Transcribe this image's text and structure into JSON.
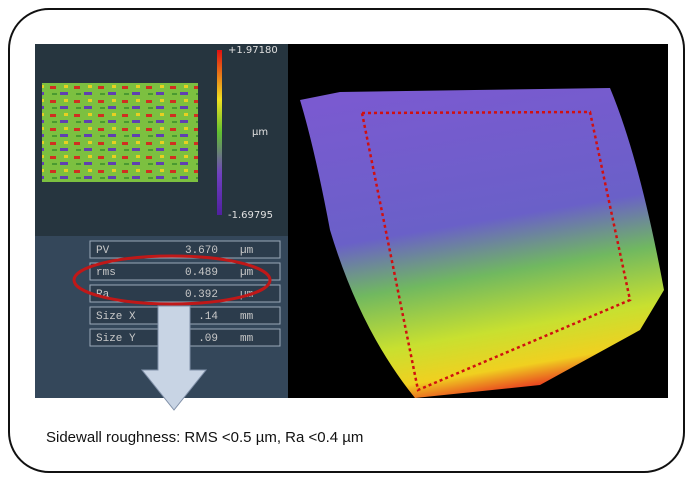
{
  "scale": {
    "max": "+1.97180",
    "unit": "µm",
    "min": "-1.69795"
  },
  "table": {
    "rows": [
      [
        "PV",
        "3.670",
        "µm"
      ],
      [
        "rms",
        "0.489",
        "µm"
      ],
      [
        "Ra",
        "0.392",
        "µm"
      ],
      [
        "Size X",
        ".14",
        "mm"
      ],
      [
        "Size Y",
        ".09",
        "mm"
      ]
    ]
  },
  "caption": "Sidewall roughness: RMS <0.5 µm, Ra <0.4 µm"
}
